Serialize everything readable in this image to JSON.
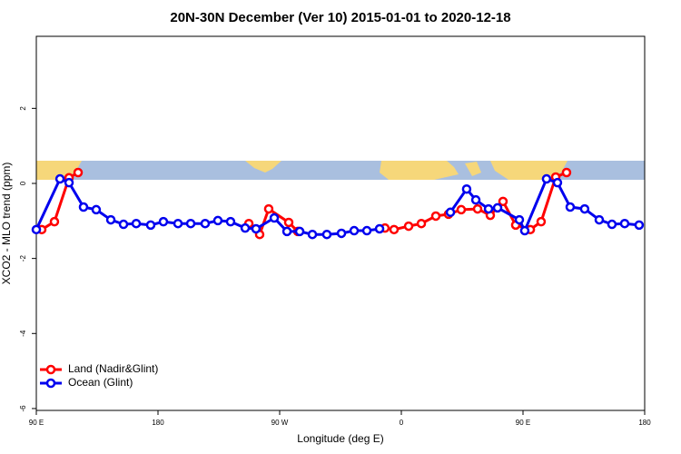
{
  "chart_data": {
    "type": "line",
    "title": "20N-30N December (Ver 10)   2015-01-01 to 2020-12-18",
    "x_label": "Longitude (deg E)",
    "y_label": "XCO2 - MLO trend (ppm)",
    "xlim": [
      90,
      540
    ],
    "ylim": [
      -6.05,
      3.92
    ],
    "xticks": [
      {
        "value": 90,
        "label": "90 E"
      },
      180,
      {
        "value": 270,
        "label": "90 W"
      },
      {
        "value": 360,
        "label": "0"
      },
      {
        "value": 450,
        "label": "90 E"
      },
      {
        "value": 540,
        "label": "180"
      }
    ],
    "yticks": [
      -6,
      -4,
      -2,
      0,
      2
    ],
    "legend": "bottomleft",
    "series": [
      {
        "name": "Land (Nadir&Glint)",
        "color": "#ff0000",
        "x": [
          94,
          103.4,
          114.2,
          120.9,
          null,
          247.2,
          255.2,
          261.9,
          276.7,
          283.4,
          null,
          347.9,
          354.6,
          365.4,
          374.8,
          385.5,
          394.9,
          404.3,
          416.4,
          425.8,
          435.2,
          444.6,
          455.4,
          463.4,
          474.2,
          482.2
        ],
        "values": [
          -1.23,
          -1.02,
          0.15,
          0.29,
          null,
          -1.07,
          -1.36,
          -0.68,
          -1.04,
          -1.28,
          null,
          -1.19,
          -1.23,
          -1.14,
          -1.07,
          -0.87,
          -0.82,
          -0.7,
          -0.68,
          -0.85,
          -0.48,
          -1.11,
          -1.23,
          -1.02,
          0.17,
          0.29
        ]
      },
      {
        "name": "Ocean (Glint)",
        "color": "#0000ee",
        "x": [
          90,
          107.5,
          114.2,
          124.9,
          134.3,
          145.1,
          154.5,
          163.9,
          174.6,
          184,
          194.8,
          204.2,
          214.9,
          224.3,
          233.7,
          244.5,
          252.5,
          266,
          275.4,
          284.8,
          294.2,
          304.9,
          315.7,
          325.1,
          334.5,
          343.9,
          null,
          396.3,
          408.3,
          415.1,
          424.5,
          431.2,
          447.3,
          451.3,
          467.4,
          475.5,
          484.9,
          495.6,
          506.4,
          515.8,
          525.2,
          535.9
        ],
        "values": [
          -1.23,
          0.12,
          0.02,
          -0.63,
          -0.7,
          -0.97,
          -1.09,
          -1.07,
          -1.11,
          -1.02,
          -1.07,
          -1.07,
          -1.07,
          -0.99,
          -1.02,
          -1.19,
          -1.21,
          -0.92,
          -1.28,
          -1.28,
          -1.36,
          -1.36,
          -1.33,
          -1.26,
          -1.26,
          -1.21,
          null,
          -0.77,
          -0.15,
          -0.44,
          -0.68,
          -0.65,
          -0.97,
          -1.26,
          0.12,
          0.02,
          -0.63,
          -0.68,
          -0.97,
          -1.09,
          -1.07,
          -1.11
        ]
      }
    ]
  }
}
